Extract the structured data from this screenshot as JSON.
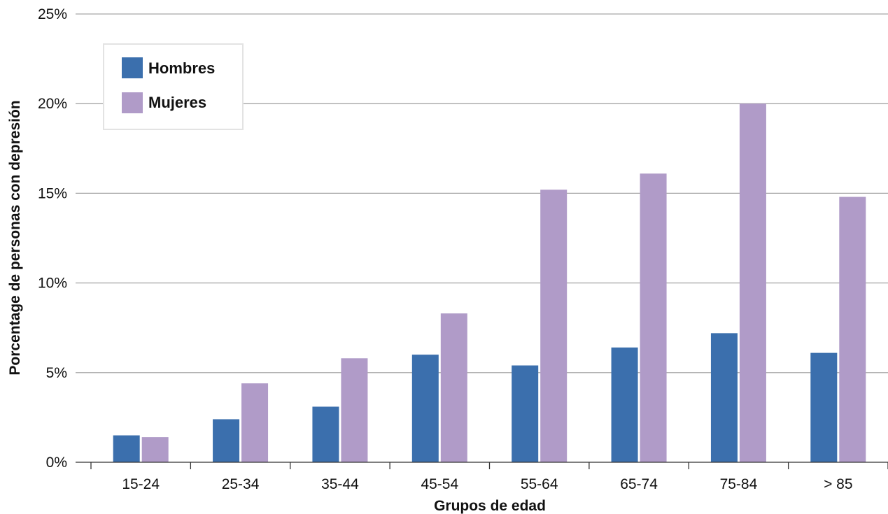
{
  "chart_data": {
    "type": "bar",
    "categories": [
      "15-24",
      "25-34",
      "35-44",
      "45-54",
      "55-64",
      "65-74",
      "75-84",
      "> 85"
    ],
    "series": [
      {
        "name": "Hombres",
        "color": "#3b6fad",
        "values": [
          1.5,
          2.4,
          3.1,
          6.0,
          5.4,
          6.4,
          7.2,
          6.1
        ]
      },
      {
        "name": "Mujeres",
        "color": "#b09bc8",
        "values": [
          1.4,
          4.4,
          5.8,
          8.3,
          15.2,
          16.1,
          20.0,
          14.8
        ]
      }
    ],
    "xlabel": "Grupos de edad",
    "ylabel": "Porcentage de personas con depresión",
    "ylim": [
      0,
      25
    ],
    "yticks": [
      0,
      5,
      10,
      15,
      20,
      25
    ],
    "ytick_labels": [
      "0%",
      "5%",
      "10%",
      "15%",
      "20%",
      "25%"
    ],
    "grid": true,
    "legend_position": "top-left"
  }
}
